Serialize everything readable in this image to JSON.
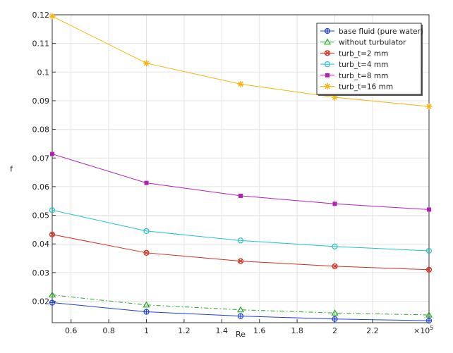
{
  "chart_data": {
    "type": "line",
    "xlabel": "Re",
    "ylabel": "f",
    "x_multiplier_label": "×10",
    "x_multiplier_exp": "5",
    "xlim": [
      0.5,
      2.5
    ],
    "ylim": [
      0.0125,
      0.12
    ],
    "x_ticks": [
      0.6,
      0.8,
      1,
      1.2,
      1.4,
      1.6,
      1.8,
      2,
      2.2
    ],
    "x_tick_labels": [
      "0.6",
      "0.8",
      "1",
      "1.2",
      "1.4",
      "1.6",
      "1.8",
      "2",
      "2.2"
    ],
    "y_ticks": [
      0.02,
      0.03,
      0.04,
      0.05,
      0.06,
      0.07,
      0.08,
      0.09,
      0.1,
      0.11,
      0.12
    ],
    "y_tick_labels": [
      "0.02",
      "0.03",
      "0.04",
      "0.05",
      "0.06",
      "0.07",
      "0.08",
      "0.09",
      "0.1",
      "0.11",
      "0.12"
    ],
    "grid": true,
    "legend_position": "top-right",
    "x": [
      0.5,
      1.0,
      1.5,
      2.0,
      2.5
    ],
    "series": [
      {
        "name": "base fluid (pure water)",
        "color": "#1a3fe0",
        "marker": "circle-plus",
        "dash": "solid",
        "values": [
          0.0195,
          0.0163,
          0.0148,
          0.0138,
          0.0132
        ]
      },
      {
        "name": "without turbulator",
        "color": "#22aa22",
        "marker": "triangle",
        "dash": "dashdot",
        "values": [
          0.0222,
          0.0187,
          0.017,
          0.0159,
          0.0152
        ]
      },
      {
        "name": "turb_t=2 mm",
        "color": "#d42b1e",
        "marker": "circle-x",
        "dash": "solid",
        "values": [
          0.0433,
          0.0369,
          0.034,
          0.0322,
          0.031
        ]
      },
      {
        "name": "turb_t=4 mm",
        "color": "#1fc4c8",
        "marker": "circle",
        "dash": "solid",
        "values": [
          0.0518,
          0.0445,
          0.0412,
          0.0391,
          0.0376
        ]
      },
      {
        "name": "turb_t=8 mm",
        "color": "#b51fb5",
        "marker": "square",
        "dash": "solid",
        "values": [
          0.0714,
          0.0613,
          0.0568,
          0.054,
          0.052
        ]
      },
      {
        "name": "turb_t=16 mm",
        "color": "#f5b40f",
        "marker": "star",
        "dash": "solid",
        "values": [
          0.1195,
          0.1031,
          0.0958,
          0.0912,
          0.088
        ]
      }
    ]
  }
}
